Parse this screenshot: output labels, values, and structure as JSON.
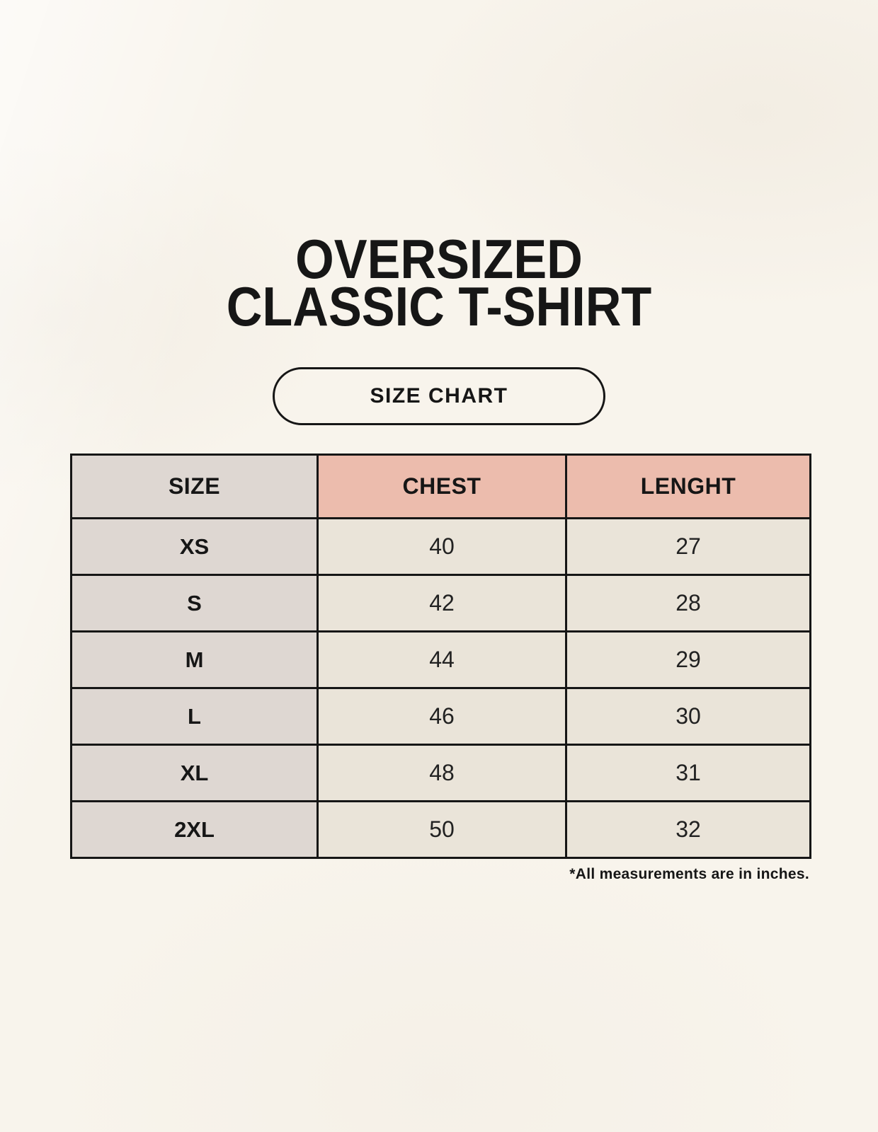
{
  "header": {
    "title_line1": "OVERSIZED",
    "title_line2": "CLASSIC T-SHIRT",
    "size_chart_label": "SIZE CHART"
  },
  "footnote": "*All measurements are in inches.",
  "colors": {
    "background": "#f8f4ec",
    "size_column_bg": "#ded7d2",
    "measure_header_bg": "#ecbcad",
    "data_cell_bg": "#eae4d9",
    "table_border": "#161616",
    "text": "#161616"
  },
  "chart_data": {
    "type": "table",
    "title": "OVERSIZED CLASSIC T-SHIRT",
    "subtitle": "SIZE CHART",
    "columns": [
      "SIZE",
      "CHEST",
      "LENGHT"
    ],
    "rows": [
      [
        "XS",
        "40",
        "27"
      ],
      [
        "S",
        "42",
        "28"
      ],
      [
        "M",
        "44",
        "29"
      ],
      [
        "L",
        "46",
        "30"
      ],
      [
        "XL",
        "48",
        "31"
      ],
      [
        "2XL",
        "50",
        "32"
      ]
    ],
    "units": "inches",
    "note": "*All measurements are in inches."
  }
}
